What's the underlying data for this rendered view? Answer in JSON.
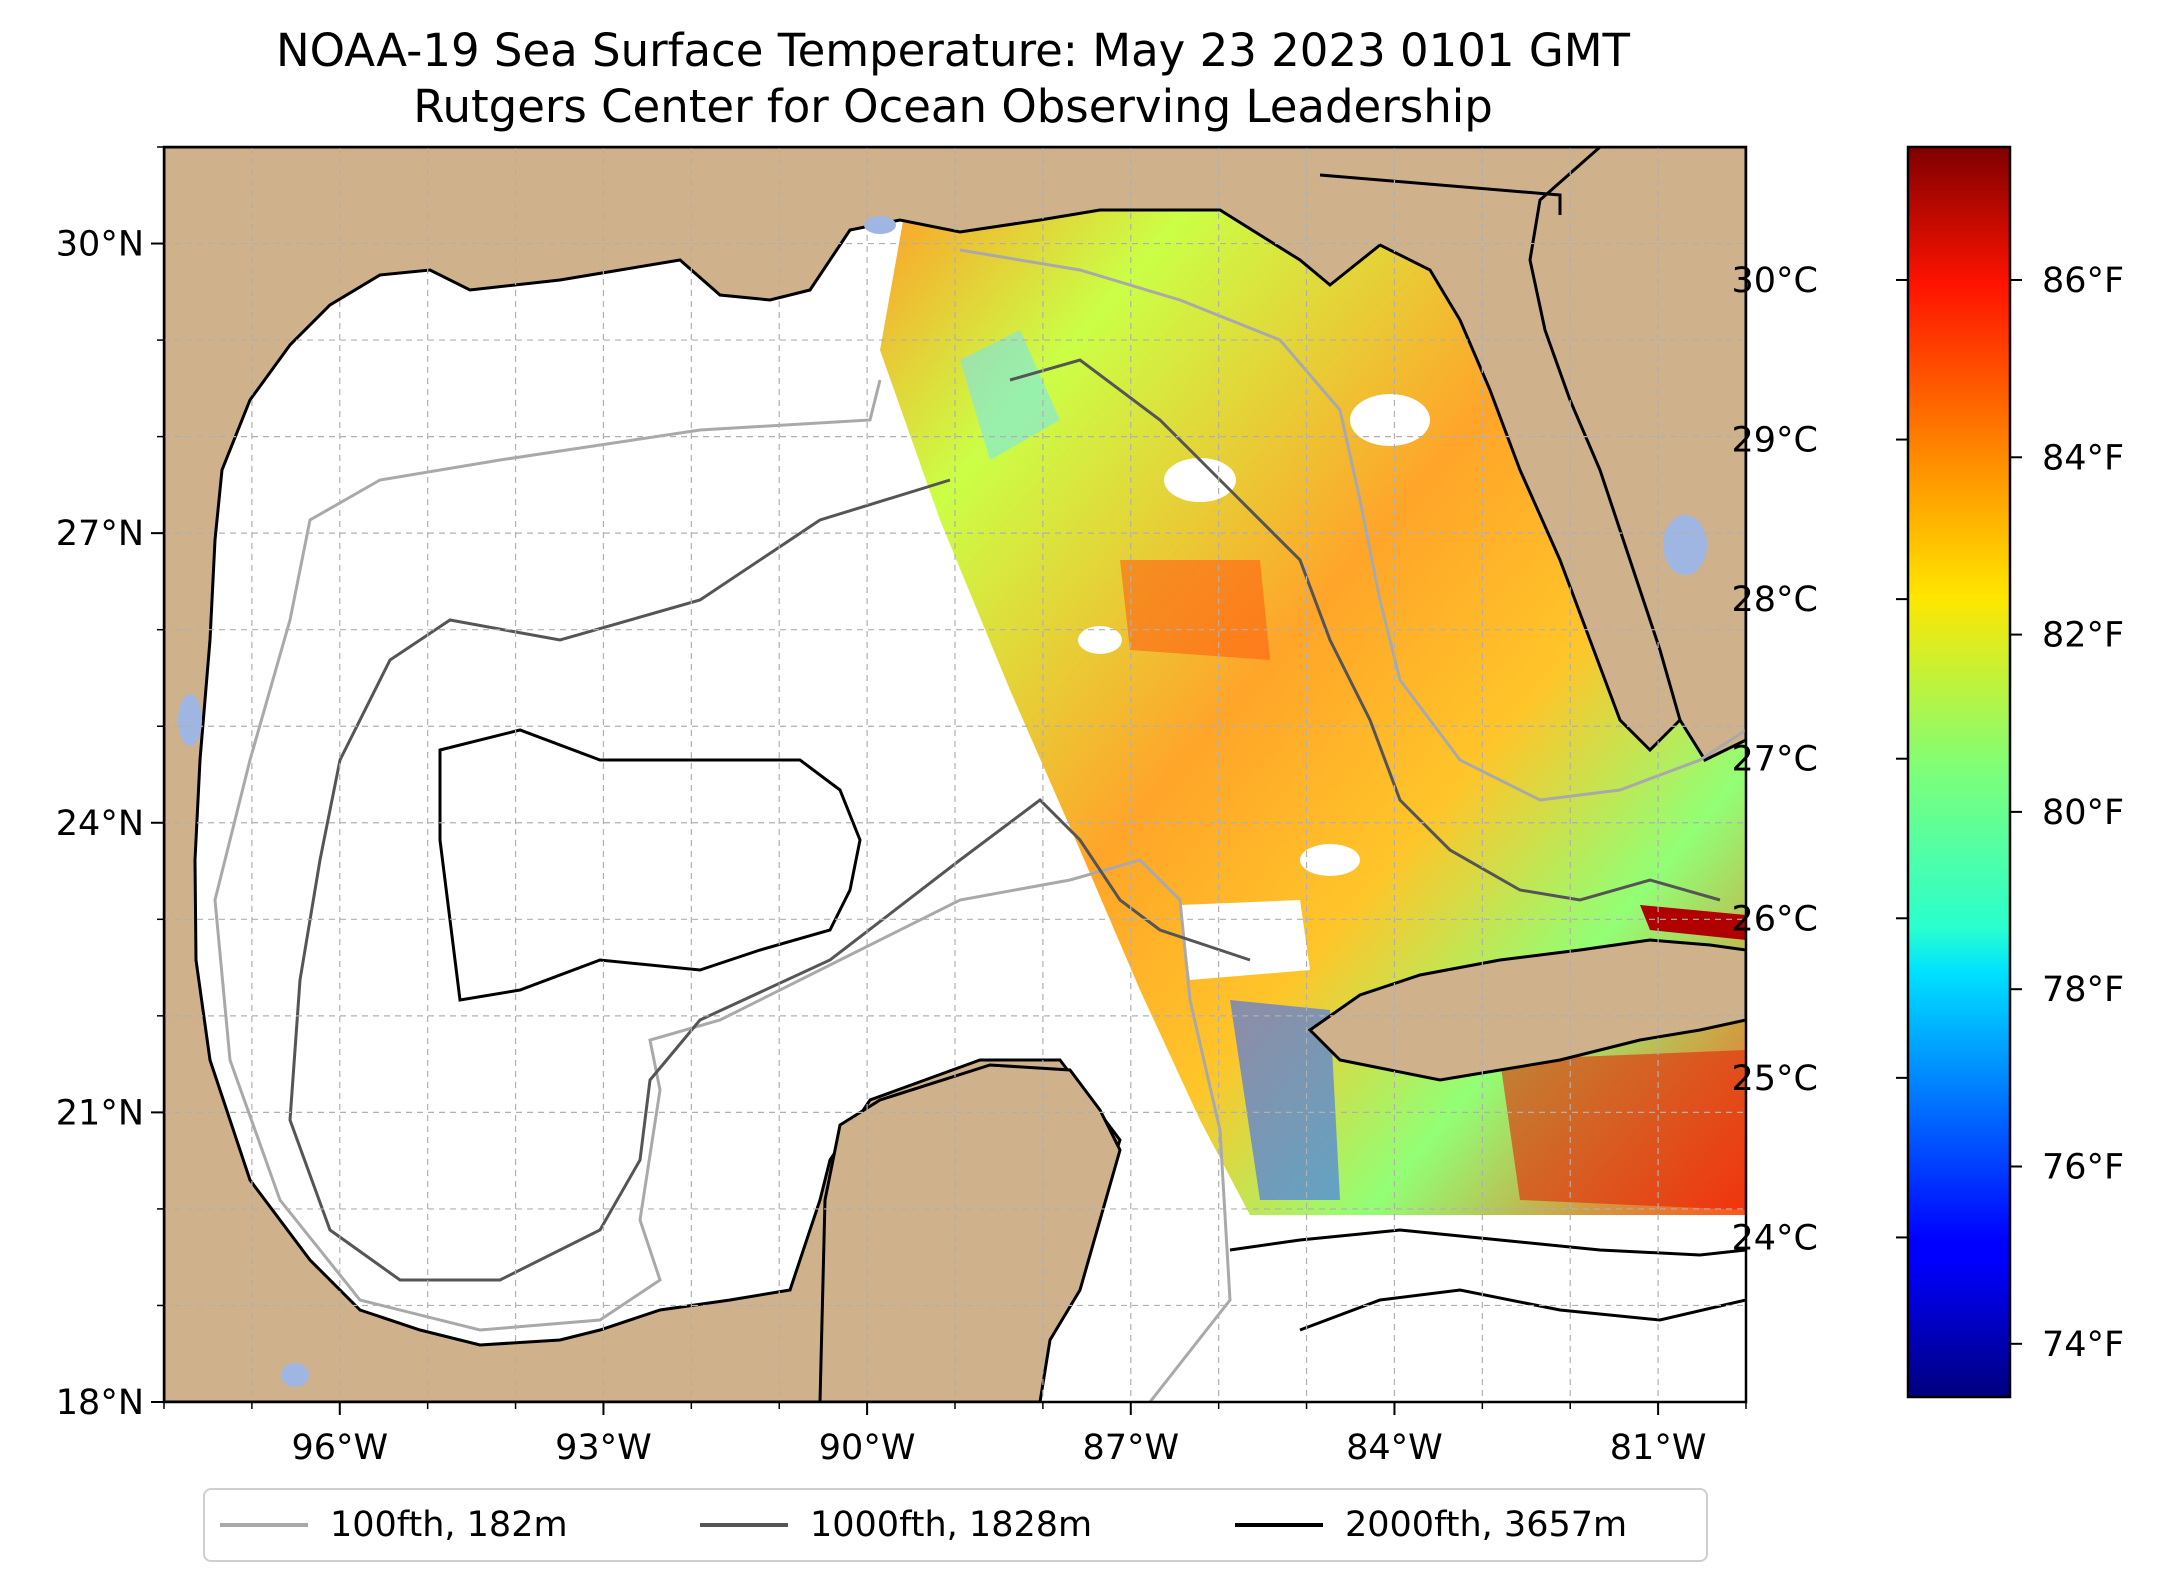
{
  "title": {
    "line1": "NOAA-19 Sea Surface Temperature: May 23 2023 0101 GMT",
    "line2": "Rutgers Center for Ocean Observing Leadership"
  },
  "map": {
    "lon_range": [
      -98.0,
      -80.0
    ],
    "lat_range": [
      18.0,
      31.0
    ],
    "land_color": "#cfb28b",
    "lake_color": "#9fb6e3",
    "gridlines": true,
    "lat_ticks": [
      {
        "value": 30,
        "label": "30°N"
      },
      {
        "value": 27,
        "label": "27°N"
      },
      {
        "value": 24,
        "label": "24°N"
      },
      {
        "value": 21,
        "label": "21°N"
      },
      {
        "value": 18,
        "label": "18°N"
      }
    ],
    "lon_ticks": [
      {
        "value": -96,
        "label": "96°W"
      },
      {
        "value": -93,
        "label": "93°W"
      },
      {
        "value": -90,
        "label": "90°W"
      },
      {
        "value": -87,
        "label": "87°W"
      },
      {
        "value": -84,
        "label": "84°W"
      },
      {
        "value": -81,
        "label": "81°W"
      }
    ]
  },
  "colorbar": {
    "colormap": "jet",
    "celsius_ticks": [
      {
        "value": 30,
        "label": "30°C"
      },
      {
        "value": 29,
        "label": "29°C"
      },
      {
        "value": 28,
        "label": "28°C"
      },
      {
        "value": 27,
        "label": "27°C"
      },
      {
        "value": 26,
        "label": "26°C"
      },
      {
        "value": 25,
        "label": "25°C"
      },
      {
        "value": 24,
        "label": "24°C"
      }
    ],
    "fahrenheit_ticks": [
      {
        "value": 86,
        "label": "86°F"
      },
      {
        "value": 84,
        "label": "84°F"
      },
      {
        "value": 82,
        "label": "82°F"
      },
      {
        "value": 80,
        "label": "80°F"
      },
      {
        "value": 78,
        "label": "78°F"
      },
      {
        "value": 76,
        "label": "76°F"
      },
      {
        "value": 74,
        "label": "74°F"
      }
    ],
    "range_f": [
      73.4,
      87.5
    ]
  },
  "legend": [
    {
      "label": "100fth, 182m",
      "color": "#a9a9a9"
    },
    {
      "label": "1000fth, 1828m",
      "color": "#555555"
    },
    {
      "label": "2000fth, 3657m",
      "color": "#000000"
    }
  ]
}
